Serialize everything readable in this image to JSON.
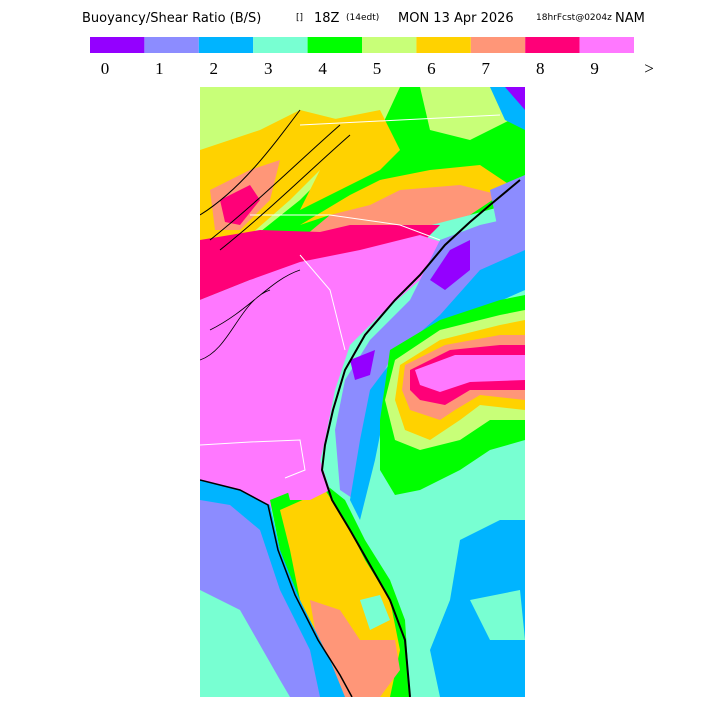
{
  "header": {
    "title": "Buoyancy/Shear Ratio (B/S)",
    "symbol": "[]",
    "valid": "18Z",
    "local": "(14edt)",
    "date": "MON 13 Apr 2026",
    "forecast": "18hrFcst@0204z",
    "model": "NAM"
  },
  "legend": {
    "labels": [
      "0",
      "1",
      "2",
      "3",
      "4",
      "5",
      "6",
      "7",
      "8",
      "9",
      ">"
    ],
    "colors": [
      "#9400ff",
      "#8c8cff",
      "#00b4ff",
      "#78ffd2",
      "#00ff00",
      "#c8ff78",
      "#ffd200",
      "#ff9678",
      "#ff0078",
      "#ff78ff"
    ]
  }
}
